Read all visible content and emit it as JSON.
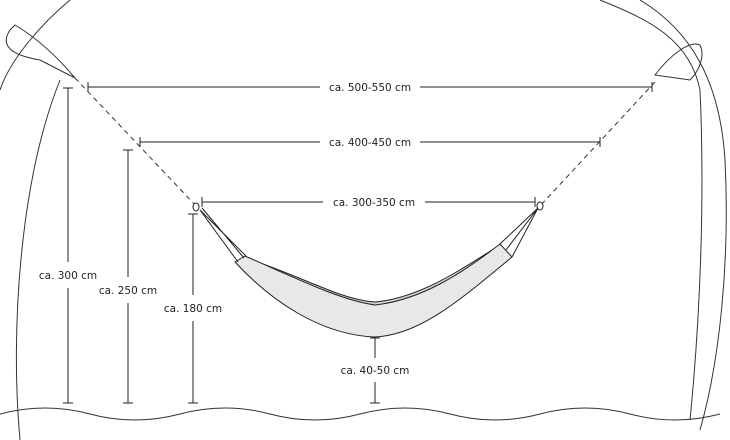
{
  "dimensions": {
    "anchor_span_outer": "ca. 500-550 cm",
    "anchor_span_middle": "ca. 400-450 cm",
    "anchor_span_inner": "ca. 300-350 cm",
    "height_outer": "ca. 300 cm",
    "height_middle": "ca. 250 cm",
    "height_inner": "ca. 180 cm",
    "ground_clearance": "ca. 40-50 cm"
  },
  "colors": {
    "line": "#222222",
    "hammock_fill": "#e8e8e8",
    "hammock_inner": "#d4d4d4"
  }
}
